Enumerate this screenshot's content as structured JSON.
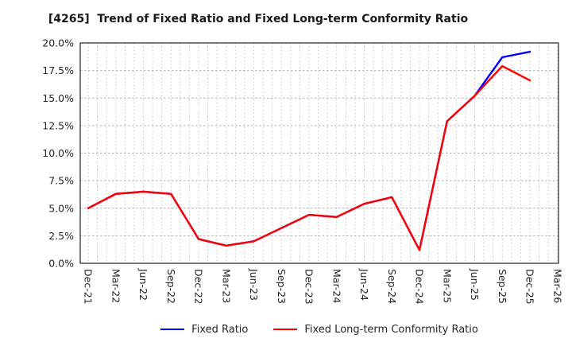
{
  "chart_data": {
    "type": "line",
    "title": "[4265]  Trend of Fixed Ratio and Fixed Long-term Conformity Ratio",
    "categories": [
      "Dec-21",
      "Mar-22",
      "Jun-22",
      "Sep-22",
      "Dec-22",
      "Mar-23",
      "Jun-23",
      "Sep-23",
      "Dec-23",
      "Mar-24",
      "Jun-24",
      "Sep-24",
      "Dec-24",
      "Mar-25",
      "Jun-25",
      "Sep-25",
      "Dec-25",
      "Mar-26"
    ],
    "series": [
      {
        "name": "Fixed Ratio",
        "color": "#0000ff",
        "values": [
          5.0,
          6.3,
          6.5,
          6.3,
          2.2,
          1.6,
          2.0,
          3.2,
          4.4,
          4.2,
          5.4,
          6.0,
          1.2,
          12.9,
          15.2,
          18.7,
          19.2,
          null
        ]
      },
      {
        "name": "Fixed Long-term Conformity Ratio",
        "color": "#ff0000",
        "values": [
          5.0,
          6.3,
          6.5,
          6.3,
          2.2,
          1.6,
          2.0,
          3.2,
          4.4,
          4.2,
          5.4,
          6.0,
          1.2,
          12.9,
          15.2,
          17.9,
          16.6,
          null
        ]
      }
    ],
    "ylim": [
      0,
      20
    ],
    "ytick_step": 2.5,
    "ytick_labels": [
      "0.0%",
      "2.5%",
      "5.0%",
      "7.5%",
      "10.0%",
      "12.5%",
      "15.0%",
      "17.5%",
      "20.0%"
    ],
    "grid": true,
    "minor_x_divisions": 3,
    "legend_position": "bottom",
    "grid_color": "#b0b0b0",
    "axis_color": "#262626"
  }
}
